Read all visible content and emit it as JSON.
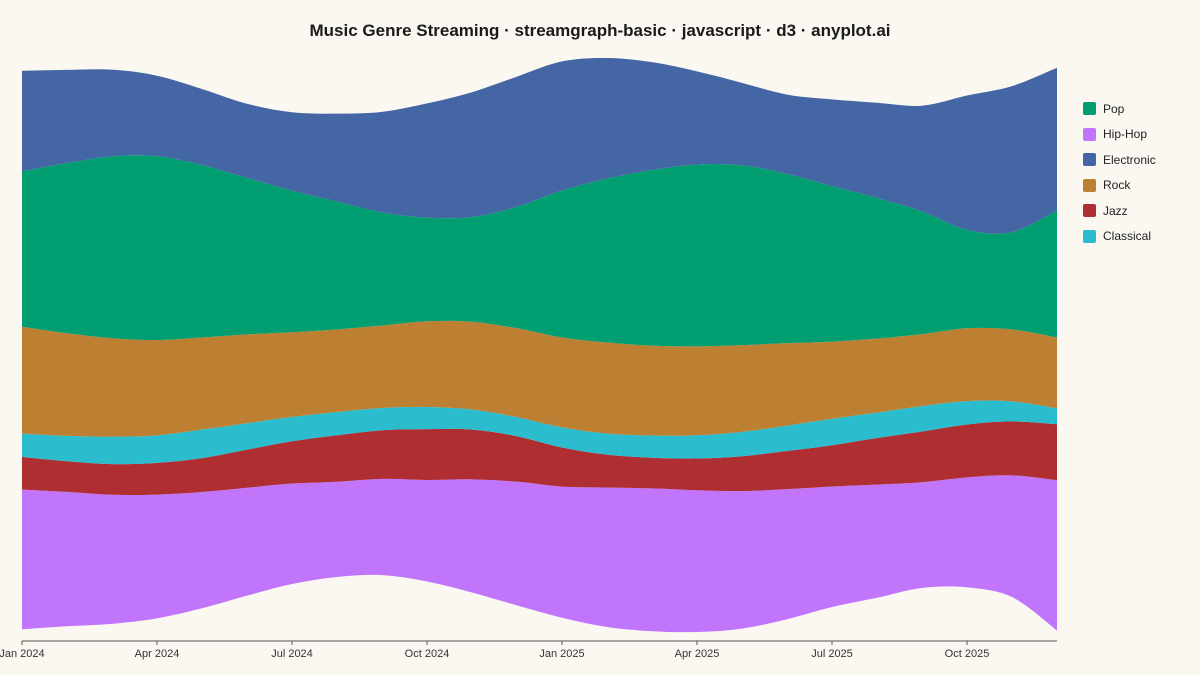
{
  "chart_data": {
    "type": "streamgraph",
    "title": "Music Genre Streaming · streamgraph-basic · javascript · d3 · anyplot.ai",
    "xlabel": "",
    "ylabel": "",
    "offset": "wiggle",
    "curve": "smooth",
    "x_ticks": [
      "Jan 2024",
      "Apr 2024",
      "Jul 2024",
      "Oct 2024",
      "Jan 2025",
      "Apr 2025",
      "Jul 2025",
      "Oct 2025"
    ],
    "x": [
      "Jan 2024",
      "Feb 2024",
      "Mar 2024",
      "Apr 2024",
      "May 2024",
      "Jun 2024",
      "Jul 2024",
      "Aug 2024",
      "Sep 2024",
      "Oct 2024",
      "Nov 2024",
      "Dec 2024",
      "Jan 2025",
      "Feb 2025",
      "Mar 2025",
      "Apr 2025",
      "May 2025",
      "Jun 2025",
      "Jul 2025",
      "Aug 2025",
      "Sep 2025",
      "Oct 2025",
      "Nov 2025",
      "Dec 2025"
    ],
    "stack_order_bottom_to_top": [
      "Hip-Hop",
      "Jazz",
      "Classical",
      "Rock",
      "Pop",
      "Electronic"
    ],
    "legend_order": [
      "Pop",
      "Hip-Hop",
      "Electronic",
      "Rock",
      "Jazz",
      "Classical"
    ],
    "legend_position": "right",
    "grid": false,
    "series": [
      {
        "name": "Hip-Hop",
        "color": "#C175FB",
        "values": [
          132,
          127,
          122,
          117,
          110,
          102,
          95,
          90,
          91,
          96,
          107,
          117,
          124,
          132,
          135,
          134,
          130,
          123,
          114,
          107,
          100,
          104,
          115,
          142
        ]
      },
      {
        "name": "Jazz",
        "color": "#AE2E32",
        "values": [
          31,
          29,
          29,
          30,
          32,
          36,
          40,
          44,
          46,
          48,
          47,
          43,
          37,
          31,
          29,
          30,
          33,
          36,
          39,
          44,
          48,
          50,
          51,
          53
        ]
      },
      {
        "name": "Classical",
        "color": "#2BBCCE",
        "values": [
          22,
          24,
          26,
          26,
          27,
          25,
          23,
          22,
          21,
          21,
          19,
          18,
          19,
          20,
          21,
          22,
          23,
          24,
          25,
          24,
          24,
          22,
          19,
          15
        ]
      },
      {
        "name": "Rock",
        "color": "#BD8033",
        "values": [
          101,
          97,
          93,
          90,
          87,
          84,
          80,
          78,
          78,
          81,
          83,
          84,
          85,
          86,
          85,
          84,
          82,
          78,
          73,
          70,
          68,
          69,
          68,
          67
        ]
      },
      {
        "name": "Pop",
        "color": "#019E71",
        "values": [
          147,
          161,
          172,
          174,
          163,
          148,
          134,
          121,
          107,
          98,
          99,
          115,
          139,
          155,
          166,
          172,
          170,
          160,
          147,
          133,
          116,
          93,
          92,
          120
        ]
      },
      {
        "name": "Electronic",
        "color": "#4466A4",
        "values": [
          95,
          88,
          82,
          76,
          72,
          70,
          74,
          83,
          95,
          108,
          118,
          123,
          122,
          114,
          102,
          88,
          78,
          75,
          82,
          90,
          100,
          127,
          138,
          135
        ]
      }
    ]
  }
}
